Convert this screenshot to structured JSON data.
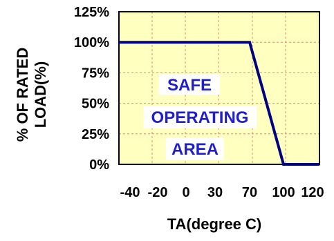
{
  "colors": {
    "plot_background": "#FFFFC0",
    "gridline": "#F08080",
    "curve": "#000080",
    "annotation_text": "#1F1FCC",
    "annotation_background": "#FFFFFF",
    "frame": "#000000"
  },
  "chart_data": {
    "type": "line",
    "title": "",
    "xlabel": "TA(degree C)",
    "ylabel_lines": [
      "% OF RATED",
      "LOAD(%)"
    ],
    "x_categories": [
      "-40",
      "-20",
      "0",
      "30",
      "70",
      "100",
      "120"
    ],
    "y_ticks": [
      "0%",
      "25%",
      "50%",
      "75%",
      "100%",
      "125%"
    ],
    "y_tick_values": [
      0,
      25,
      50,
      75,
      100,
      125
    ],
    "ylim": [
      0,
      125
    ],
    "grid": {
      "x": true,
      "y": true,
      "style": "dashed"
    },
    "series": [
      {
        "x": [
          -40,
          70,
          100,
          120
        ],
        "y": [
          100,
          100,
          0,
          0
        ]
      }
    ],
    "annotation_lines": [
      "SAFE",
      "OPERATING",
      "AREA"
    ]
  }
}
